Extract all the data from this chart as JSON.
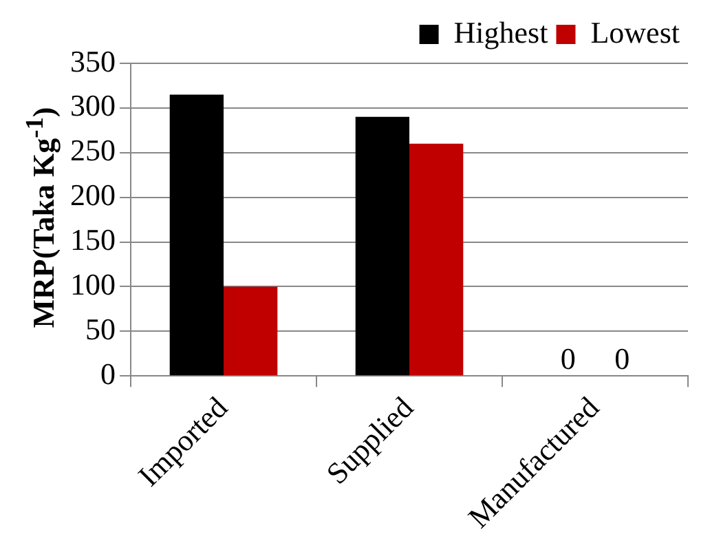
{
  "chart_data": {
    "type": "bar",
    "ylabel": "MRP(Taka Kg$^{-1}$)",
    "categories": [
      "Imported",
      "Supplied",
      "Manufactured"
    ],
    "series": [
      {
        "name": "Highest",
        "color": "#000000",
        "values": [
          315,
          290,
          0
        ],
        "value_labels": [
          null,
          null,
          "0"
        ]
      },
      {
        "name": "Lowest",
        "color": "#c00000",
        "values": [
          100,
          260,
          0
        ],
        "value_labels": [
          null,
          null,
          "0"
        ]
      }
    ],
    "ylim": [
      0,
      350
    ],
    "yticks": [
      0,
      50,
      100,
      150,
      200,
      250,
      300,
      350
    ],
    "grid": "y",
    "legend": "top right"
  }
}
